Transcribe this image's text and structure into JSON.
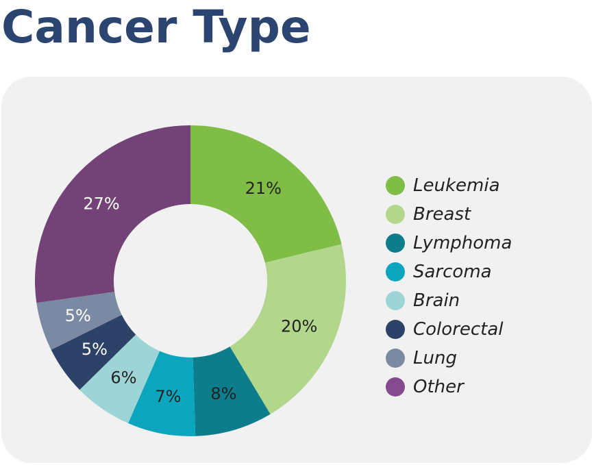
{
  "chart_data": {
    "type": "pie",
    "title": "Cancer Type",
    "donut": true,
    "legend_position": "right",
    "slices": [
      {
        "name": "Leukemia",
        "value": 21,
        "label": "21%",
        "color": "#80bd46",
        "label_color": "#222222"
      },
      {
        "name": "Breast",
        "value": 20,
        "label": "20%",
        "color": "#b2d78c",
        "label_color": "#222222"
      },
      {
        "name": "Lymphoma",
        "value": 8,
        "label": "8%",
        "color": "#0d7d8c",
        "label_color": "#222222"
      },
      {
        "name": "Sarcoma",
        "value": 7,
        "label": "7%",
        "color": "#0ba5bd",
        "label_color": "#222222"
      },
      {
        "name": "Brain",
        "value": 6,
        "label": "6%",
        "color": "#9dd4d6",
        "label_color": "#222222"
      },
      {
        "name": "Colorectal",
        "value": 5,
        "label": "5%",
        "color": "#2c4268",
        "label_color": "#ffffff"
      },
      {
        "name": "Lung",
        "value": 5,
        "label": "5%",
        "color": "#7a8aa3",
        "label_color": "#ffffff"
      },
      {
        "name": "Other",
        "value": 27,
        "label": "27%",
        "color": "#734276",
        "label_color": "#ffffff"
      }
    ],
    "legend": [
      {
        "name": "Leukemia",
        "color": "#80bd46"
      },
      {
        "name": "Breast",
        "color": "#b2d78c"
      },
      {
        "name": "Lymphoma",
        "color": "#0d7d8c"
      },
      {
        "name": "Sarcoma",
        "color": "#0ba5bd"
      },
      {
        "name": "Brain",
        "color": "#9dd4d6"
      },
      {
        "name": "Colorectal",
        "color": "#2c4268"
      },
      {
        "name": "Lung",
        "color": "#7a8aa3"
      },
      {
        "name": "Other",
        "color": "#834a8e"
      }
    ]
  },
  "colors": {
    "title": "#2b4570",
    "panel_background": "#f1f1f1"
  }
}
